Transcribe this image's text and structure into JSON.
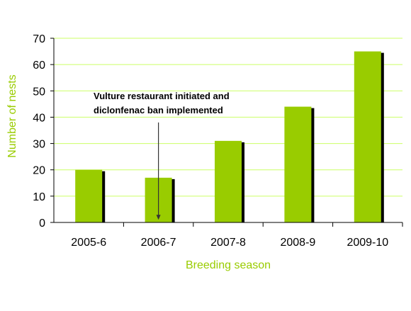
{
  "chart_data": {
    "type": "bar",
    "categories": [
      "2005-6",
      "2006-7",
      "2007-8",
      "2008-9",
      "2009-10"
    ],
    "values": [
      20,
      17,
      31,
      44,
      65
    ],
    "xlabel": "Breeding season",
    "ylabel": "Number of nests",
    "ylim": [
      0,
      70
    ],
    "yticks": [
      "0",
      "10",
      "20",
      "30",
      "40",
      "50",
      "60",
      "70"
    ],
    "grid": true,
    "annotation": {
      "lines": [
        "Vulture restaurant initiated and",
        "diclonfenac ban implemented"
      ],
      "arrow_x": 1.5,
      "arrow_from": 38,
      "arrow_to": 1
    },
    "colors": {
      "bar": "#99cc00",
      "bar_shadow": "#000000",
      "axis_title": "#99cc00",
      "grid": "#ccff66"
    }
  }
}
